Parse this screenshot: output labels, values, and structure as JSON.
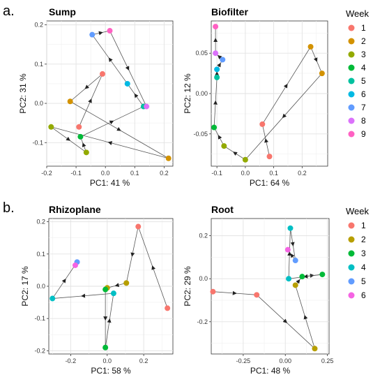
{
  "figure": {
    "panel_labels": [
      "a.",
      "b."
    ],
    "legends": [
      {
        "title": "Week",
        "items": [
          {
            "label": "1",
            "color": "#F8766D"
          },
          {
            "label": "2",
            "color": "#D39200"
          },
          {
            "label": "3",
            "color": "#93AA00"
          },
          {
            "label": "4",
            "color": "#00BA38"
          },
          {
            "label": "5",
            "color": "#00C19F"
          },
          {
            "label": "6",
            "color": "#00B9E3"
          },
          {
            "label": "7",
            "color": "#619CFF"
          },
          {
            "label": "8",
            "color": "#DB72FB"
          },
          {
            "label": "9",
            "color": "#FF61C3"
          }
        ]
      },
      {
        "title": "Week",
        "items": [
          {
            "label": "1",
            "color": "#F8766D"
          },
          {
            "label": "2",
            "color": "#B79F00"
          },
          {
            "label": "3",
            "color": "#00BA38"
          },
          {
            "label": "4",
            "color": "#00BFC4"
          },
          {
            "label": "5",
            "color": "#619CFF"
          },
          {
            "label": "6",
            "color": "#F564E3"
          }
        ]
      }
    ]
  },
  "chart_data": [
    {
      "type": "scatter",
      "title": "Sump",
      "xlabel": "PC1:  41 %",
      "ylabel": "PC2:  31 %",
      "xlim": [
        -0.2,
        0.23
      ],
      "ylim": [
        -0.16,
        0.21
      ],
      "xticks": [
        -0.2,
        -0.1,
        0.0,
        0.1,
        0.2
      ],
      "xtick_labels": [
        "-0.2",
        "-0.1",
        "0.0",
        "0.1",
        "0.2"
      ],
      "yticks": [
        -0.1,
        0.0,
        0.1,
        0.2
      ],
      "ytick_labels": [
        "-0.1",
        "0.0",
        "0.1",
        "0.2"
      ],
      "grid": true,
      "connected_by_week": true,
      "points": [
        {
          "week": "1",
          "x": -0.09,
          "y": -0.06
        },
        {
          "week": "1",
          "x": -0.01,
          "y": 0.075
        },
        {
          "week": "2",
          "x": -0.12,
          "y": 0.005
        },
        {
          "week": "2",
          "x": 0.215,
          "y": -0.14
        },
        {
          "week": "3",
          "x": -0.185,
          "y": -0.06
        },
        {
          "week": "3",
          "x": -0.065,
          "y": -0.125
        },
        {
          "week": "4",
          "x": -0.085,
          "y": -0.085
        },
        {
          "week": "5",
          "x": 0.13,
          "y": -0.008
        },
        {
          "week": "6",
          "x": 0.075,
          "y": 0.05
        },
        {
          "week": "7",
          "x": -0.045,
          "y": 0.175
        },
        {
          "week": "8",
          "x": 0.14,
          "y": -0.008
        },
        {
          "week": "9",
          "x": 0.015,
          "y": 0.185
        }
      ],
      "path": [
        [
          -0.09,
          -0.06
        ],
        [
          -0.01,
          0.075
        ],
        [
          -0.12,
          0.005
        ],
        [
          0.215,
          -0.14
        ],
        [
          -0.185,
          -0.06
        ],
        [
          -0.065,
          -0.125
        ],
        [
          -0.085,
          -0.085
        ],
        [
          0.13,
          -0.008
        ],
        [
          0.075,
          0.05
        ],
        [
          -0.045,
          0.175
        ],
        [
          0.015,
          0.185
        ],
        [
          0.14,
          -0.008
        ]
      ]
    },
    {
      "type": "scatter",
      "title": "Biofilter",
      "xlabel": "PC1:  64 %",
      "ylabel": "PC2:  12 %",
      "xlim": [
        -0.12,
        0.29
      ],
      "ylim": [
        -0.09,
        0.09
      ],
      "xticks": [
        -0.1,
        0.0,
        0.1,
        0.2
      ],
      "xtick_labels": [
        "-0.1",
        "0.0",
        "0.1",
        "0.2"
      ],
      "yticks": [
        -0.05,
        0.0,
        0.05
      ],
      "ytick_labels": [
        "-0.05",
        "0.00",
        "0.05"
      ],
      "grid": true,
      "connected_by_week": true,
      "points": [
        {
          "week": "1",
          "x": 0.06,
          "y": -0.038
        },
        {
          "week": "1",
          "x": 0.085,
          "y": -0.078
        },
        {
          "week": "2",
          "x": 0.23,
          "y": 0.058
        },
        {
          "week": "2",
          "x": 0.27,
          "y": 0.025
        },
        {
          "week": "3",
          "x": -0.075,
          "y": -0.065
        },
        {
          "week": "3",
          "x": 0.0,
          "y": -0.082
        },
        {
          "week": "4",
          "x": -0.11,
          "y": -0.042
        },
        {
          "week": "5",
          "x": -0.1,
          "y": 0.02
        },
        {
          "week": "6",
          "x": -0.1,
          "y": 0.03
        },
        {
          "week": "7",
          "x": -0.08,
          "y": 0.042
        },
        {
          "week": "8",
          "x": -0.105,
          "y": 0.05
        },
        {
          "week": "9",
          "x": -0.105,
          "y": 0.083
        }
      ],
      "path": [
        [
          0.085,
          -0.078
        ],
        [
          0.06,
          -0.038
        ],
        [
          0.23,
          0.058
        ],
        [
          0.27,
          0.025
        ],
        [
          0.0,
          -0.082
        ],
        [
          -0.075,
          -0.065
        ],
        [
          -0.11,
          -0.042
        ],
        [
          -0.1,
          0.02
        ],
        [
          -0.1,
          0.03
        ],
        [
          -0.08,
          0.042
        ],
        [
          -0.105,
          0.05
        ],
        [
          -0.105,
          0.083
        ]
      ]
    },
    {
      "type": "scatter",
      "title": "Rhizoplane",
      "xlabel": "PC1:  58 %",
      "ylabel": "PC2:  17 %",
      "xlim": [
        -0.32,
        0.36
      ],
      "ylim": [
        -0.21,
        0.21
      ],
      "xticks": [
        -0.2,
        0.0,
        0.2
      ],
      "xtick_labels": [
        "-0.2",
        "0.0",
        "0.2"
      ],
      "yticks": [
        -0.2,
        -0.1,
        0.0,
        0.1,
        0.2
      ],
      "ytick_labels": [
        "-0.2",
        "-0.1",
        "0.0",
        "0.1",
        "0.2"
      ],
      "grid": true,
      "connected_by_week": true,
      "points": [
        {
          "week": "1",
          "x": 0.17,
          "y": 0.185
        },
        {
          "week": "1",
          "x": 0.33,
          "y": -0.068
        },
        {
          "week": "2",
          "x": 0.105,
          "y": 0.01
        },
        {
          "week": "2",
          "x": 0.0,
          "y": -0.005
        },
        {
          "week": "3",
          "x": -0.01,
          "y": -0.01
        },
        {
          "week": "3",
          "x": -0.01,
          "y": -0.19
        },
        {
          "week": "4",
          "x": 0.035,
          "y": -0.022
        },
        {
          "week": "4",
          "x": -0.3,
          "y": -0.038
        },
        {
          "week": "5",
          "x": -0.165,
          "y": 0.075
        },
        {
          "week": "6",
          "x": -0.175,
          "y": 0.065
        }
      ],
      "path": [
        [
          0.33,
          -0.068
        ],
        [
          0.17,
          0.185
        ],
        [
          0.105,
          0.01
        ],
        [
          0.0,
          -0.005
        ],
        [
          -0.01,
          -0.01
        ],
        [
          -0.01,
          -0.19
        ],
        [
          0.035,
          -0.022
        ],
        [
          -0.3,
          -0.038
        ],
        [
          -0.165,
          0.075
        ],
        [
          -0.175,
          0.065
        ]
      ]
    },
    {
      "type": "scatter",
      "title": "Root",
      "xlabel": "PC1:  48 %",
      "ylabel": "PC2:  29 %",
      "xlim": [
        -0.44,
        0.26
      ],
      "ylim": [
        -0.35,
        0.28
      ],
      "xticks": [
        -0.25,
        0.0,
        0.25
      ],
      "xtick_labels": [
        "-0.25",
        "0.00",
        "0.25"
      ],
      "yticks": [
        -0.2,
        0.0,
        0.2
      ],
      "ytick_labels": [
        "-0.2",
        "0.0",
        "0.2"
      ],
      "grid": true,
      "connected_by_week": true,
      "points": [
        {
          "week": "1",
          "x": -0.43,
          "y": -0.06
        },
        {
          "week": "1",
          "x": -0.17,
          "y": -0.075
        },
        {
          "week": "2",
          "x": 0.175,
          "y": -0.325
        },
        {
          "week": "2",
          "x": 0.06,
          "y": -0.03
        },
        {
          "week": "3",
          "x": 0.1,
          "y": 0.01
        },
        {
          "week": "3",
          "x": 0.22,
          "y": 0.02
        },
        {
          "week": "4",
          "x": 0.03,
          "y": 0.235
        },
        {
          "week": "4",
          "x": 0.02,
          "y": 0.0
        },
        {
          "week": "5",
          "x": 0.06,
          "y": 0.085
        },
        {
          "week": "6",
          "x": 0.015,
          "y": 0.135
        }
      ],
      "path": [
        [
          -0.43,
          -0.06
        ],
        [
          -0.17,
          -0.075
        ],
        [
          0.175,
          -0.325
        ],
        [
          0.06,
          -0.03
        ],
        [
          0.1,
          0.01
        ],
        [
          0.22,
          0.02
        ],
        [
          0.02,
          0.0
        ],
        [
          0.03,
          0.235
        ],
        [
          0.06,
          0.085
        ],
        [
          0.015,
          0.135
        ]
      ]
    }
  ]
}
